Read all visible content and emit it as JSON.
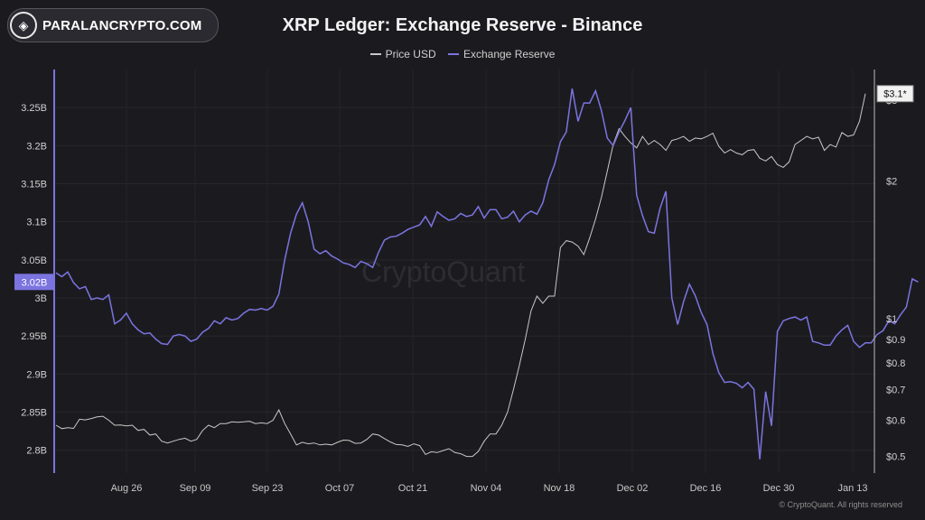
{
  "logo": {
    "text": "PARALANCRYPTO.COM",
    "icon": "diamond-logo-icon"
  },
  "watermark": "CryptoQuant",
  "copyright": "© CryptoQuant. All rights reserved",
  "chart_data": {
    "type": "line",
    "title": "XRP Ledger: Exchange Reserve - Binance",
    "legend": [
      "Price USD",
      "Exchange Reserve"
    ],
    "legend_position": "top-center",
    "grid": true,
    "x_ticks": [
      "Aug 26",
      "Sep 09",
      "Sep 23",
      "Oct 07",
      "Oct 21",
      "Nov 04",
      "Nov 18",
      "Dec 02",
      "Dec 16",
      "Dec 30",
      "Jan 13"
    ],
    "y_left": {
      "ticks": [
        "3.25B",
        "3.2B",
        "3.15B",
        "3.1B",
        "3.05B",
        "3B",
        "2.95B",
        "2.9B",
        "2.85B",
        "2.8B"
      ],
      "tick_values": [
        3.25,
        3.2,
        3.15,
        3.1,
        3.05,
        3.0,
        2.95,
        2.9,
        2.85,
        2.8
      ],
      "range": [
        2.77,
        3.3
      ],
      "unit": "B"
    },
    "y_right": {
      "ticks": [
        "$3",
        "$2",
        "$1",
        "$0.9",
        "$0.8",
        "$0.7",
        "$0.6",
        "$0.5"
      ],
      "tick_values": [
        3,
        2,
        1,
        0.9,
        0.8,
        0.7,
        0.6,
        0.5
      ],
      "scale": "log",
      "range": [
        0.46,
        3.5
      ]
    },
    "current_labels": {
      "reserve": "3.02B",
      "price": "$3.1*"
    },
    "colors": {
      "price": "#c8c8c8",
      "reserve": "#7b74e0",
      "background": "#1b1b1f"
    },
    "series": [
      {
        "name": "Price USD",
        "values": [
          0.585,
          0.575,
          0.578,
          0.576,
          0.603,
          0.601,
          0.605,
          0.61,
          0.612,
          0.6,
          0.585,
          0.586,
          0.583,
          0.585,
          0.57,
          0.573,
          0.557,
          0.56,
          0.54,
          0.535,
          0.54,
          0.545,
          0.548,
          0.54,
          0.545,
          0.57,
          0.585,
          0.578,
          0.59,
          0.59,
          0.595,
          0.594,
          0.595,
          0.597,
          0.59,
          0.592,
          0.59,
          0.6,
          0.632,
          0.59,
          0.56,
          0.53,
          0.537,
          0.533,
          0.535,
          0.53,
          0.532,
          0.53,
          0.537,
          0.543,
          0.542,
          0.534,
          0.535,
          0.545,
          0.56,
          0.557,
          0.547,
          0.538,
          0.531,
          0.53,
          0.526,
          0.533,
          0.528,
          0.505,
          0.512,
          0.51,
          0.515,
          0.52,
          0.51,
          0.507,
          0.5,
          0.5,
          0.513,
          0.54,
          0.56,
          0.56,
          0.585,
          0.625,
          0.7,
          0.79,
          0.9,
          1.04,
          1.12,
          1.08,
          1.12,
          1.12,
          1.43,
          1.48,
          1.47,
          1.44,
          1.38,
          1.5,
          1.65,
          1.84,
          2.1,
          2.4,
          2.6,
          2.5,
          2.42,
          2.36,
          2.5,
          2.4,
          2.45,
          2.4,
          2.33,
          2.45,
          2.47,
          2.5,
          2.44,
          2.48,
          2.47,
          2.5,
          2.54,
          2.38,
          2.3,
          2.34,
          2.3,
          2.28,
          2.33,
          2.34,
          2.24,
          2.21,
          2.26,
          2.17,
          2.14,
          2.2,
          2.4,
          2.45,
          2.5,
          2.47,
          2.49,
          2.33,
          2.4,
          2.37,
          2.55,
          2.5,
          2.52,
          2.7,
          3.1
        ]
      },
      {
        "name": "Exchange Reserve",
        "values": [
          3.033,
          3.028,
          3.034,
          3.02,
          3.012,
          3.015,
          2.998,
          3.0,
          2.998,
          3.004,
          2.966,
          2.971,
          2.98,
          2.966,
          2.958,
          2.953,
          2.954,
          2.946,
          2.94,
          2.939,
          2.95,
          2.952,
          2.95,
          2.943,
          2.946,
          2.955,
          2.96,
          2.97,
          2.966,
          2.974,
          2.971,
          2.973,
          2.98,
          2.985,
          2.984,
          2.986,
          2.984,
          2.989,
          3.005,
          3.05,
          3.085,
          3.11,
          3.125,
          3.1,
          3.064,
          3.058,
          3.062,
          3.055,
          3.051,
          3.046,
          3.044,
          3.04,
          3.048,
          3.045,
          3.04,
          3.06,
          3.076,
          3.08,
          3.081,
          3.085,
          3.09,
          3.093,
          3.096,
          3.107,
          3.094,
          3.113,
          3.107,
          3.102,
          3.104,
          3.111,
          3.107,
          3.109,
          3.12,
          3.105,
          3.116,
          3.116,
          3.104,
          3.106,
          3.114,
          3.1,
          3.109,
          3.114,
          3.11,
          3.125,
          3.155,
          3.175,
          3.205,
          3.218,
          3.275,
          3.232,
          3.256,
          3.256,
          3.272,
          3.246,
          3.21,
          3.2,
          3.218,
          3.233,
          3.25,
          3.135,
          3.108,
          3.087,
          3.085,
          3.118,
          3.14,
          3.0,
          2.965,
          2.995,
          3.018,
          3.003,
          2.981,
          2.965,
          2.927,
          2.902,
          2.889,
          2.89,
          2.888,
          2.882,
          2.889,
          2.88,
          2.788,
          2.877,
          2.832,
          2.956,
          2.97,
          2.973,
          2.975,
          2.971,
          2.975,
          2.943,
          2.941,
          2.938,
          2.938,
          2.95,
          2.958,
          2.964,
          2.943,
          2.935,
          2.941,
          2.941,
          2.952,
          2.957,
          2.97,
          2.966,
          2.978,
          2.988,
          3.025,
          3.021
        ]
      }
    ]
  }
}
